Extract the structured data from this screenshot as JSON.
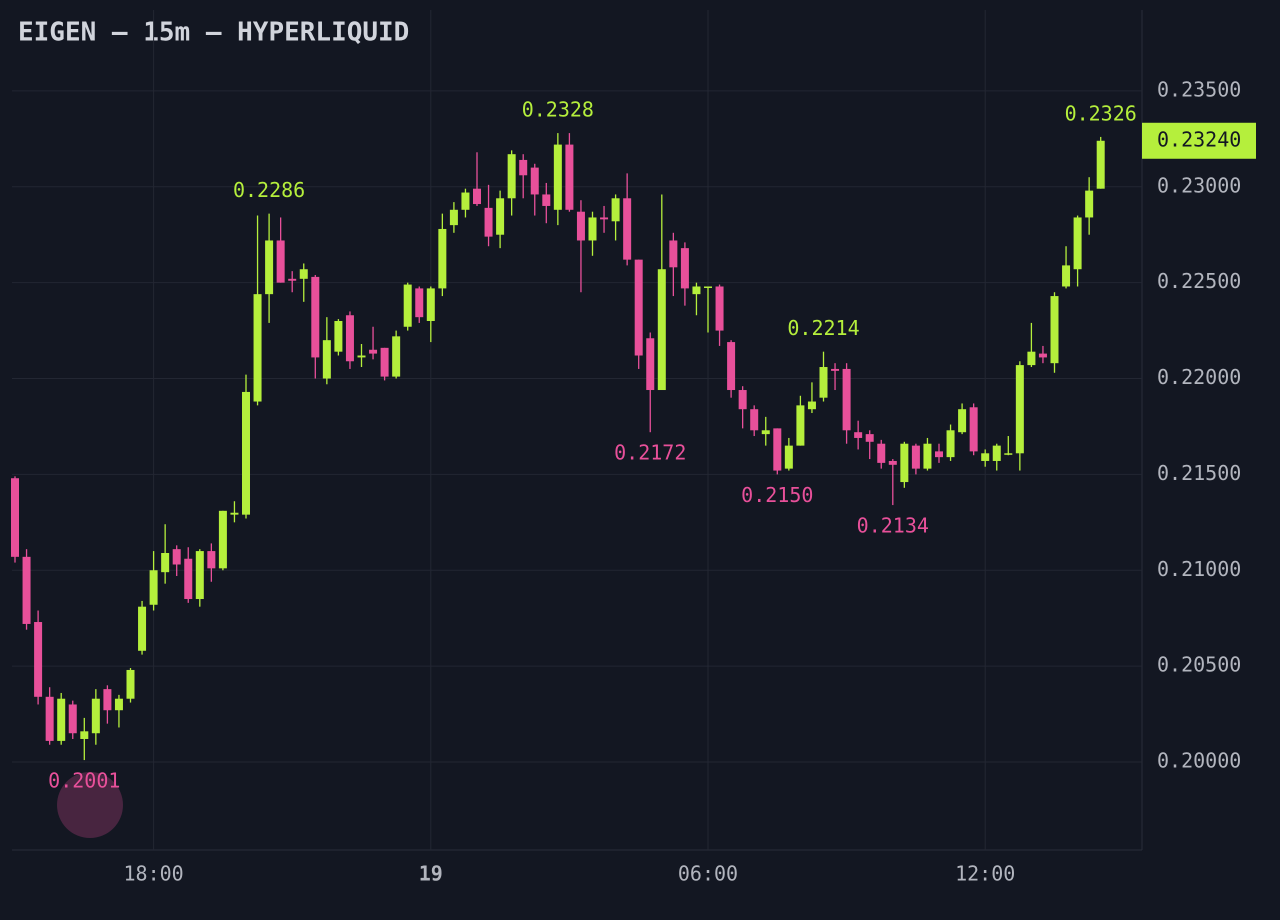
{
  "chart_data": {
    "type": "candlestick",
    "title": "EIGEN — 15m — HYPERLIQUID",
    "categories": [
      null,
      null,
      null,
      null,
      null,
      null,
      null,
      null,
      null,
      null,
      null,
      null,
      "18:00",
      null,
      null,
      null,
      null,
      null,
      null,
      null,
      null,
      null,
      null,
      null,
      null,
      null,
      null,
      null,
      null,
      null,
      null,
      null,
      null,
      null,
      null,
      null,
      "19",
      null,
      null,
      null,
      null,
      null,
      null,
      null,
      null,
      null,
      null,
      null,
      null,
      null,
      null,
      null,
      null,
      null,
      null,
      null,
      null,
      null,
      null,
      null,
      "06:00",
      null,
      null,
      null,
      null,
      null,
      null,
      null,
      null,
      null,
      null,
      null,
      null,
      null,
      null,
      null,
      null,
      null,
      null,
      null,
      null,
      null,
      null,
      null,
      "12:00",
      null,
      null,
      null,
      null,
      null,
      null,
      null,
      null,
      null,
      null
    ],
    "open": [
      0.2148,
      0.2107,
      0.2073,
      0.2034,
      0.2011,
      0.203,
      0.2012,
      0.2015,
      0.2038,
      0.2027,
      0.2033,
      0.2058,
      0.2082,
      0.2099,
      0.2111,
      0.2106,
      0.2085,
      0.211,
      0.2101,
      0.2129,
      0.2129,
      0.2188,
      0.2244,
      0.2272,
      0.2252,
      0.2252,
      0.2253,
      0.22,
      0.2214,
      0.2233,
      0.2211,
      0.2215,
      0.2216,
      0.2201,
      0.2227,
      0.2247,
      0.223,
      0.2247,
      0.228,
      0.2288,
      0.2299,
      0.2289,
      0.2275,
      0.2294,
      0.2314,
      0.231,
      0.2296,
      0.2288,
      0.2322,
      0.2287,
      0.2272,
      0.2284,
      0.2282,
      0.2294,
      0.2262,
      0.2221,
      0.2194,
      0.2272,
      0.2268,
      0.2244,
      0.2248,
      0.2248,
      0.2219,
      0.2194,
      0.2184,
      0.2171,
      0.2174,
      0.2153,
      0.2165,
      0.2184,
      0.219,
      0.2205,
      0.2205,
      0.2172,
      0.2171,
      0.2166,
      0.2157,
      0.2146,
      0.2165,
      0.2153,
      0.2162,
      0.2159,
      0.2172,
      0.2185,
      0.2157,
      0.2157,
      0.2161,
      0.2161,
      0.2207,
      0.2213,
      0.2208,
      0.2248,
      0.2257,
      0.2284,
      0.2299
    ],
    "high": [
      0.2149,
      0.2111,
      0.2079,
      0.2039,
      0.2036,
      0.2032,
      0.2023,
      0.2038,
      0.204,
      0.2035,
      0.2049,
      0.2084,
      0.211,
      0.2124,
      0.2113,
      0.2112,
      0.2111,
      0.2114,
      0.2131,
      0.2136,
      0.2202,
      0.2285,
      0.2286,
      0.2284,
      0.2256,
      0.226,
      0.2254,
      0.2232,
      0.2231,
      0.2235,
      0.2218,
      0.2227,
      0.2216,
      0.2225,
      0.225,
      0.2248,
      0.2248,
      0.2286,
      0.2292,
      0.2299,
      0.2318,
      0.2301,
      0.2298,
      0.2319,
      0.2317,
      0.2312,
      0.2302,
      0.2328,
      0.2328,
      0.2293,
      0.2287,
      0.229,
      0.2296,
      0.2307,
      0.2262,
      0.2224,
      0.2296,
      0.2276,
      0.2271,
      0.225,
      0.2248,
      0.2249,
      0.222,
      0.2196,
      0.2186,
      0.218,
      0.2174,
      0.2169,
      0.2191,
      0.2198,
      0.2214,
      0.2208,
      0.2208,
      0.2178,
      0.2173,
      0.2168,
      0.2158,
      0.2167,
      0.2166,
      0.2169,
      0.2166,
      0.2176,
      0.2187,
      0.2187,
      0.2163,
      0.2166,
      0.217,
      0.2209,
      0.2229,
      0.2217,
      0.2245,
      0.2269,
      0.2285,
      0.2305,
      0.2326
    ],
    "low": [
      0.2104,
      0.2069,
      0.203,
      0.2009,
      0.2009,
      0.2012,
      0.2001,
      0.2009,
      0.202,
      0.2018,
      0.2031,
      0.2056,
      0.2079,
      0.2093,
      0.2097,
      0.2083,
      0.2081,
      0.2094,
      0.21,
      0.2125,
      0.2127,
      0.2186,
      0.2229,
      0.225,
      0.2245,
      0.224,
      0.22,
      0.2197,
      0.2212,
      0.2205,
      0.2206,
      0.221,
      0.2199,
      0.22,
      0.2225,
      0.2229,
      0.2219,
      0.2243,
      0.2276,
      0.2284,
      0.229,
      0.2269,
      0.2268,
      0.2285,
      0.2294,
      0.2285,
      0.2281,
      0.228,
      0.2287,
      0.2245,
      0.2264,
      0.2276,
      0.2272,
      0.2259,
      0.2205,
      0.2172,
      0.2194,
      0.2243,
      0.2238,
      0.2233,
      0.2224,
      0.2217,
      0.219,
      0.2174,
      0.217,
      0.2165,
      0.215,
      0.2152,
      0.2165,
      0.2182,
      0.2188,
      0.2194,
      0.2166,
      0.2163,
      0.2158,
      0.2153,
      0.2134,
      0.2143,
      0.215,
      0.2152,
      0.2156,
      0.2157,
      0.2171,
      0.216,
      0.2154,
      0.2152,
      0.216,
      0.2152,
      0.2206,
      0.2208,
      0.2203,
      0.2247,
      0.2248,
      0.2275,
      0.2299
    ],
    "close": [
      0.2107,
      0.2072,
      0.2034,
      0.2011,
      0.2033,
      0.2015,
      0.2016,
      0.2033,
      0.2027,
      0.2033,
      0.2048,
      0.2081,
      0.21,
      0.2109,
      0.2103,
      0.2085,
      0.211,
      0.2101,
      0.2131,
      0.213,
      0.2193,
      0.2244,
      0.2272,
      0.225,
      0.2251,
      0.2257,
      0.2211,
      0.222,
      0.223,
      0.2209,
      0.2212,
      0.2213,
      0.2201,
      0.2222,
      0.2249,
      0.2232,
      0.2247,
      0.2278,
      0.2288,
      0.2297,
      0.2291,
      0.2274,
      0.2294,
      0.2317,
      0.2306,
      0.2296,
      0.229,
      0.2322,
      0.2288,
      0.2272,
      0.2284,
      0.2283,
      0.2294,
      0.2262,
      0.2212,
      0.2194,
      0.2257,
      0.2258,
      0.2247,
      0.2248,
      0.2248,
      0.2225,
      0.2194,
      0.2184,
      0.2173,
      0.2173,
      0.2152,
      0.2165,
      0.2186,
      0.2188,
      0.2206,
      0.2204,
      0.2173,
      0.2169,
      0.2167,
      0.2156,
      0.2155,
      0.2166,
      0.2153,
      0.2166,
      0.2159,
      0.2173,
      0.2184,
      0.2162,
      0.2161,
      0.2165,
      0.2161,
      0.2207,
      0.2214,
      0.2211,
      0.2243,
      0.2259,
      0.2284,
      0.2298,
      0.2324
    ],
    "up_color": "#b5ef3c",
    "down_color": "#e8509a",
    "ylim": [
      0.19541,
      0.23922
    ],
    "yticks": [
      {
        "value": 0.2,
        "label": "0.20000"
      },
      {
        "value": 0.205,
        "label": "0.20500"
      },
      {
        "value": 0.21,
        "label": "0.21000"
      },
      {
        "value": 0.215,
        "label": "0.21500"
      },
      {
        "value": 0.22,
        "label": "0.22000"
      },
      {
        "value": 0.225,
        "label": "0.22500"
      },
      {
        "value": 0.23,
        "label": "0.23000"
      },
      {
        "value": 0.235,
        "label": "0.23500"
      }
    ],
    "grid": true,
    "high_labels": [
      {
        "category": 22,
        "value": 0.2286,
        "label": "0.2286"
      },
      {
        "category": 47,
        "value": 0.2328,
        "label": "0.2328"
      },
      {
        "category": 70,
        "value": 0.2214,
        "label": "0.2214"
      },
      {
        "category": 94,
        "value": 0.2326,
        "label": "0.2326"
      }
    ],
    "low_labels": [
      {
        "category": 6,
        "value": 0.2001,
        "label": "0.2001"
      },
      {
        "category": 55,
        "value": 0.2172,
        "label": "0.2172"
      },
      {
        "category": 66,
        "value": 0.215,
        "label": "0.2150"
      },
      {
        "category": 76,
        "value": 0.2134,
        "label": "0.2134"
      }
    ],
    "last_price": {
      "value": 0.2324,
      "label": "0.23240"
    }
  }
}
